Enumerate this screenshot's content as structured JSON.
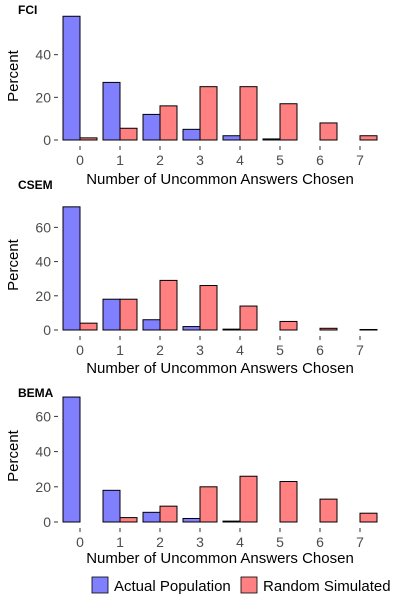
{
  "colors": {
    "actual": "#8080ff",
    "simulated": "#ff8080"
  },
  "legend": {
    "actual_label": "Actual Population",
    "simulated_label": "Random Simulated",
    "placement": "bottom"
  },
  "chart_data": [
    {
      "type": "bar",
      "title": "FCI",
      "xlabel": "Number of Uncommon Answers Chosen",
      "ylabel": "Percent",
      "categories": [
        "0",
        "1",
        "2",
        "3",
        "4",
        "5",
        "6",
        "7"
      ],
      "series": [
        {
          "name": "Actual Population",
          "values": [
            58,
            27,
            12,
            5,
            2,
            0.5,
            0,
            0
          ]
        },
        {
          "name": "Random Simulated",
          "values": [
            1,
            5.5,
            16,
            25,
            25,
            17,
            8,
            2
          ]
        }
      ],
      "ylim": [
        0,
        60
      ],
      "yticks": [
        0,
        20,
        40
      ],
      "grid": false
    },
    {
      "type": "bar",
      "title": "CSEM",
      "xlabel": "Number of Uncommon Answers Chosen",
      "ylabel": "Percent",
      "categories": [
        "0",
        "1",
        "2",
        "3",
        "4",
        "5",
        "6",
        "7"
      ],
      "series": [
        {
          "name": "Actual Population",
          "values": [
            72,
            18,
            6,
            2,
            0.5,
            0,
            0,
            0
          ]
        },
        {
          "name": "Random Simulated",
          "values": [
            4,
            18,
            29,
            26,
            14,
            5,
            1,
            0.3
          ]
        }
      ],
      "ylim": [
        0,
        76
      ],
      "yticks": [
        0,
        20,
        40,
        60
      ],
      "grid": false
    },
    {
      "type": "bar",
      "title": "BEMA",
      "xlabel": "Number of Uncommon Answers Chosen",
      "ylabel": "Percent",
      "categories": [
        "0",
        "1",
        "2",
        "3",
        "4",
        "5",
        "6",
        "7"
      ],
      "series": [
        {
          "name": "Actual Population",
          "values": [
            71,
            18,
            5.5,
            2,
            0.5,
            0,
            0,
            0
          ]
        },
        {
          "name": "Random Simulated",
          "values": [
            0,
            2.5,
            9,
            20,
            26,
            23,
            13,
            5
          ]
        }
      ],
      "ylim": [
        0,
        75
      ],
      "yticks": [
        0,
        20,
        40,
        60
      ],
      "grid": false
    }
  ]
}
